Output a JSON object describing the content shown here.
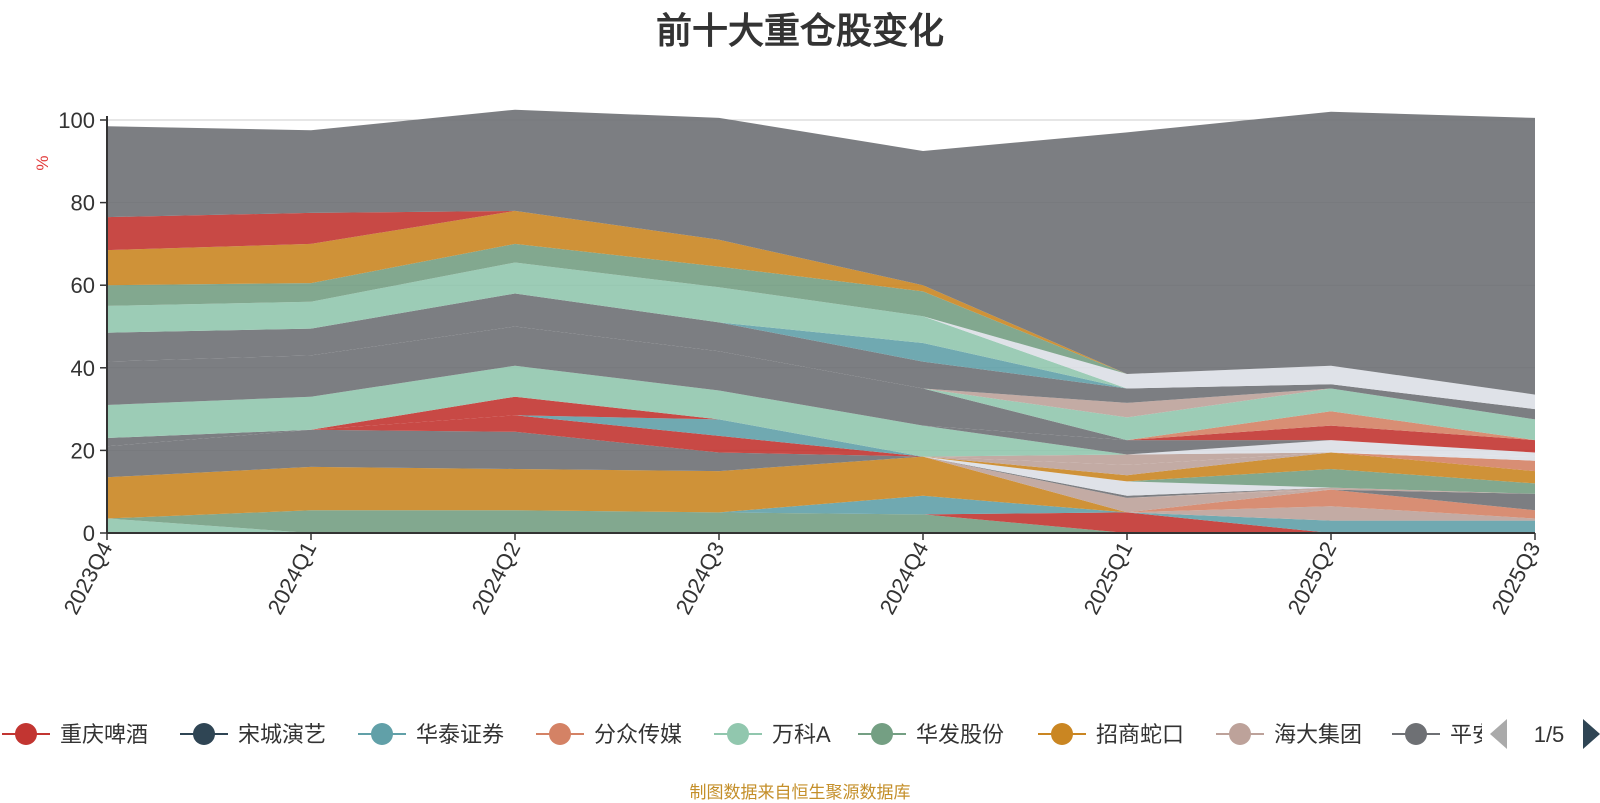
{
  "chart_data": {
    "type": "area",
    "title": "前十大重仓股变化",
    "ylabel": "%",
    "ylim": [
      0,
      100
    ],
    "yticks": [
      0,
      20,
      40,
      60,
      80,
      100
    ],
    "grid": true,
    "stacked": true,
    "legend_position": "bottom",
    "legend_page": "1/5",
    "source_note": "制图数据来自恒生聚源数据库",
    "categories": [
      "2023Q4",
      "2024Q1",
      "2024Q2",
      "2024Q3",
      "2024Q4",
      "2025Q1",
      "2025Q2",
      "2025Q3"
    ],
    "series": [
      {
        "name": "重庆啤酒",
        "color": "#c23531"
      },
      {
        "name": "宋城演艺",
        "color": "#2f4554"
      },
      {
        "name": "华泰证券",
        "color": "#61a0a8"
      },
      {
        "name": "分众传媒",
        "color": "#d48265"
      },
      {
        "name": "万科A",
        "color": "#91c7ae"
      },
      {
        "name": "华发股份",
        "color": "#749f83"
      },
      {
        "name": "招商蛇口",
        "color": "#ca8622"
      },
      {
        "name": "海大集团",
        "color": "#bda29a"
      },
      {
        "name": "平安",
        "color": "#6e7074"
      }
    ],
    "layers": [
      {
        "color": "#91c7ae",
        "values": [
          3.5,
          0,
          0,
          0,
          0,
          0,
          0,
          0
        ]
      },
      {
        "color": "#749f83",
        "values": [
          0,
          5.5,
          5.5,
          5,
          4.5,
          0,
          0,
          0
        ]
      },
      {
        "color": "#c23531",
        "values": [
          0,
          0,
          0,
          0,
          0,
          5,
          0,
          0
        ]
      },
      {
        "color": "#61a0a8",
        "values": [
          0,
          0,
          0,
          0,
          4.5,
          0,
          3,
          3
        ]
      },
      {
        "color": "#749f83",
        "values": [
          0,
          0,
          0,
          0,
          0,
          0,
          0,
          0
        ]
      },
      {
        "color": "#bda29a",
        "values": [
          0,
          0,
          0,
          0,
          0,
          0,
          3.5,
          0.5
        ]
      },
      {
        "color": "#d48265",
        "values": [
          0,
          0,
          0,
          0,
          0,
          0,
          4,
          2
        ]
      },
      {
        "color": "#ca8622",
        "values": [
          10,
          10.5,
          10,
          10,
          9.5,
          0,
          0,
          0
        ]
      },
      {
        "color": "#bda29a",
        "values": [
          0,
          0,
          0,
          0,
          0,
          3.5,
          0,
          0
        ]
      },
      {
        "color": "#6e7074",
        "values": [
          0,
          0,
          0,
          0,
          0,
          0,
          0,
          4
        ]
      },
      {
        "color": "#bda29a",
        "values": [
          0,
          0,
          0,
          0,
          0,
          0,
          0.5,
          0
        ]
      },
      {
        "color": "#6e7074",
        "values": [
          7.5,
          9,
          9,
          4.5,
          0,
          0,
          0,
          0
        ]
      },
      {
        "color": "#c23531",
        "values": [
          0,
          0,
          4,
          4,
          0,
          0,
          0,
          0
        ]
      },
      {
        "color": "#ca8622",
        "values": [
          0,
          0,
          0,
          0,
          0,
          0,
          0,
          0
        ]
      },
      {
        "color": "#6e7074",
        "values": [
          0,
          0,
          0,
          0,
          0,
          0.5,
          0,
          0
        ]
      },
      {
        "color": "#dcdfe6",
        "values": [
          0,
          0,
          0,
          0,
          0,
          3.5,
          0,
          0
        ]
      },
      {
        "color": "#749f83",
        "values": [
          0,
          0,
          0,
          0,
          0,
          0,
          4.5,
          2.5
        ]
      },
      {
        "color": "#61a0a8",
        "values": [
          0,
          0,
          0,
          4,
          0,
          0,
          0,
          0
        ]
      },
      {
        "color": "#ca8622",
        "values": [
          0,
          0,
          0,
          0,
          0,
          1.5,
          4,
          3
        ]
      },
      {
        "color": "#d48265",
        "values": [
          0,
          0,
          0,
          0,
          0,
          0,
          0,
          2.5
        ]
      },
      {
        "color": "#c23531",
        "values": [
          0,
          0,
          0,
          0,
          0,
          0,
          0,
          0
        ]
      },
      {
        "color": "#c23531",
        "values": [
          0,
          0,
          4.5,
          0,
          0,
          0,
          0,
          0
        ]
      },
      {
        "color": "#dcdfe6",
        "values": [
          0,
          0,
          0,
          0,
          0,
          0,
          0,
          1
        ]
      },
      {
        "color": "#bda29a",
        "values": [
          0,
          0,
          0,
          0,
          0,
          2.5,
          0,
          0
        ]
      },
      {
        "color": "#dcdfe6",
        "values": [
          0,
          0,
          0,
          0,
          0,
          0,
          0,
          1
        ]
      },
      {
        "color": "#6e7074",
        "values": [
          2,
          0,
          0,
          0,
          0,
          0,
          0,
          0
        ]
      },
      {
        "color": "#bda29a",
        "values": [
          0,
          0,
          0,
          0,
          0,
          2.5,
          0,
          0
        ]
      },
      {
        "color": "#dcdfe6",
        "values": [
          0,
          0,
          0,
          0,
          0,
          0,
          3,
          0
        ]
      },
      {
        "color": "#91c7ae",
        "values": [
          8,
          8,
          7.5,
          7,
          7.5,
          0,
          0,
          0
        ]
      },
      {
        "color": "#6e7074",
        "values": [
          0,
          0,
          0,
          0,
          0,
          3.5,
          0,
          0
        ]
      },
      {
        "color": "#c23531",
        "values": [
          0,
          0,
          0,
          0,
          0,
          0,
          3.5,
          3
        ]
      },
      {
        "color": "#d48265",
        "values": [
          0,
          0,
          0,
          0,
          0,
          0,
          3.5,
          0
        ]
      },
      {
        "color": "#6e7074",
        "values": [
          10.5,
          10,
          9.5,
          9.5,
          9,
          0,
          0,
          0
        ]
      },
      {
        "color": "#91c7ae",
        "values": [
          0,
          0,
          0,
          0,
          0,
          5.5,
          5.5,
          5
        ]
      },
      {
        "color": "#bda29a",
        "values": [
          0,
          0,
          0,
          0,
          0,
          3.5,
          0,
          0
        ]
      },
      {
        "color": "#6e7074",
        "values": [
          7,
          6.5,
          8,
          7,
          6.5,
          3.5,
          0,
          0
        ]
      },
      {
        "color": "#61a0a8",
        "values": [
          0,
          0,
          0,
          0,
          4.5,
          0,
          0,
          0
        ]
      },
      {
        "color": "#6e7074",
        "values": [
          0,
          0,
          0,
          0,
          0,
          0,
          1,
          2.5
        ]
      },
      {
        "color": "#91c7ae",
        "values": [
          6.5,
          6.5,
          7.5,
          8.5,
          6.5,
          0,
          0,
          0
        ]
      },
      {
        "color": "#dcdfe6",
        "values": [
          0,
          0,
          0,
          0,
          0,
          3.5,
          4.5,
          3.5
        ]
      },
      {
        "color": "#749f83",
        "values": [
          5,
          4.5,
          4.5,
          5,
          6,
          0,
          0,
          0
        ]
      },
      {
        "color": "#ca8622",
        "values": [
          8.5,
          9.5,
          8,
          6.5,
          1.5,
          0,
          0,
          0
        ]
      },
      {
        "color": "#c23531",
        "values": [
          8,
          7.5,
          0,
          0,
          0,
          0,
          0,
          0
        ]
      },
      {
        "color": "#6e7074",
        "values": [
          22,
          20,
          24.5,
          29.5,
          32.5,
          58.5,
          61.5,
          67
        ]
      }
    ]
  }
}
